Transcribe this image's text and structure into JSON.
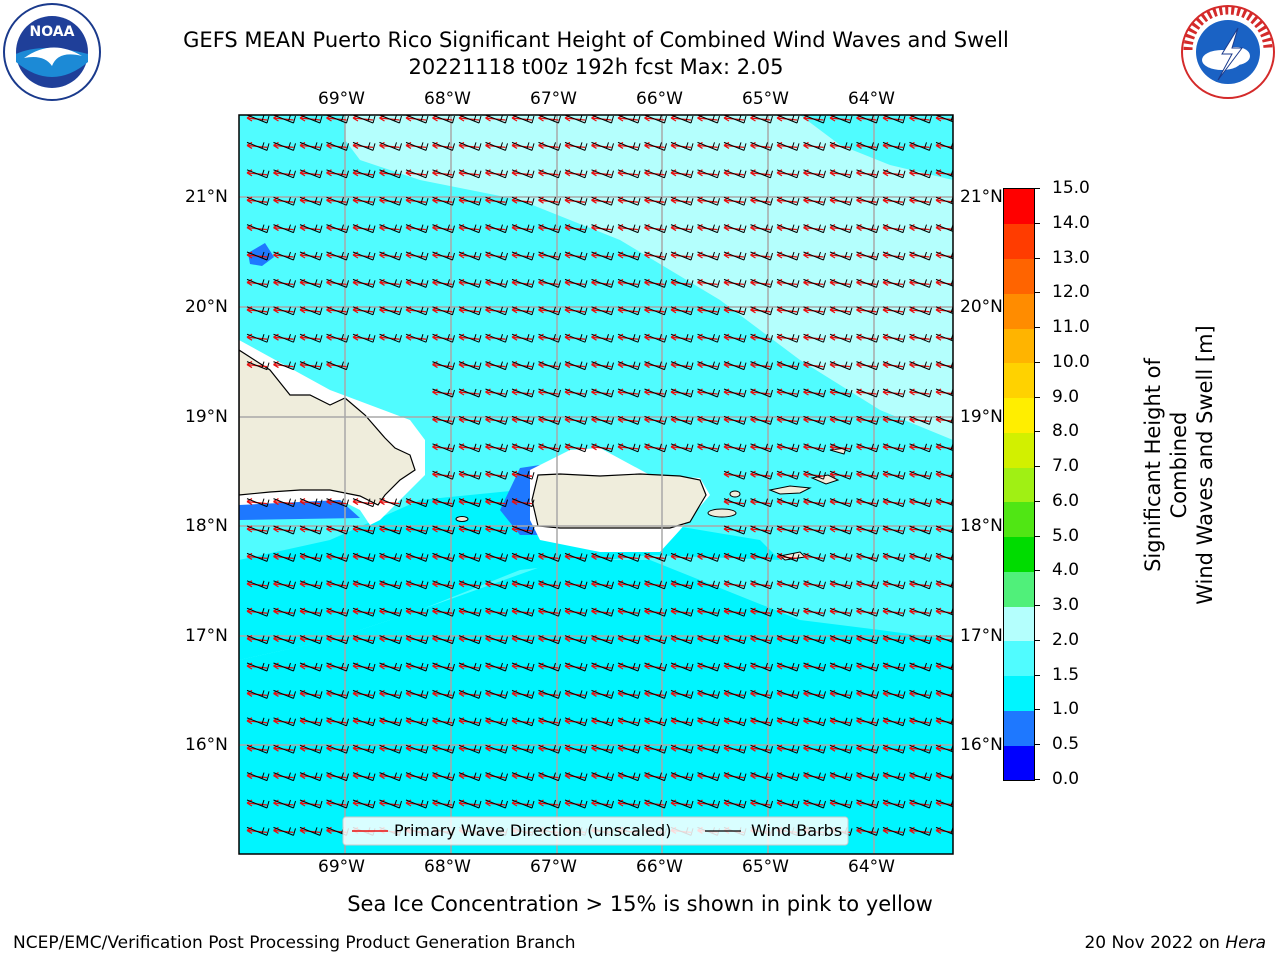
{
  "header": {
    "title_line1": "GEFS MEAN Puerto Rico Significant Height of Combined Wind Waves and Swell",
    "title_line2": "20221118 t00z 192h fcst   Max: 2.05"
  },
  "logos": {
    "noaa_text": "NOAA",
    "nws_text": "NATIONAL WEATHER SERVICE"
  },
  "map": {
    "lon_labels": [
      "69°W",
      "68°W",
      "67°W",
      "66°W",
      "65°W",
      "64°W"
    ],
    "lat_labels": [
      "21°N",
      "20°N",
      "19°N",
      "18°N",
      "17°N",
      "16°N"
    ],
    "land_color": "#efeddc",
    "legend": {
      "wave_dir": "Primary Wave Direction (unscaled)",
      "wind_barbs": "Wind Barbs"
    }
  },
  "colorbar": {
    "label_line1": "Significant Height of Combined",
    "label_line2": "Wind Waves and Swell [m]",
    "ticks": [
      "0.0",
      "0.5",
      "1.0",
      "1.5",
      "2.0",
      "3.0",
      "4.0",
      "5.0",
      "6.0",
      "7.0",
      "8.0",
      "9.0",
      "10.0",
      "11.0",
      "12.0",
      "13.0",
      "14.0",
      "15.0"
    ],
    "colors": [
      "#0000ff",
      "#1e78ff",
      "#00f5ff",
      "#50fcff",
      "#b4fffd",
      "#50f07a",
      "#00dc00",
      "#50e614",
      "#a0f014",
      "#d2f000",
      "#ffee00",
      "#ffd200",
      "#ffb400",
      "#ff8c00",
      "#ff6400",
      "#ff3c00",
      "#ff0000"
    ]
  },
  "subtitle": "Sea Ice Concentration > 15% is shown in pink to yellow",
  "footer": {
    "left": "NCEP/EMC/Verification Post Processing Product Generation Branch",
    "right_prefix": "20 Nov 2022 on",
    "right_host": "Hera"
  }
}
